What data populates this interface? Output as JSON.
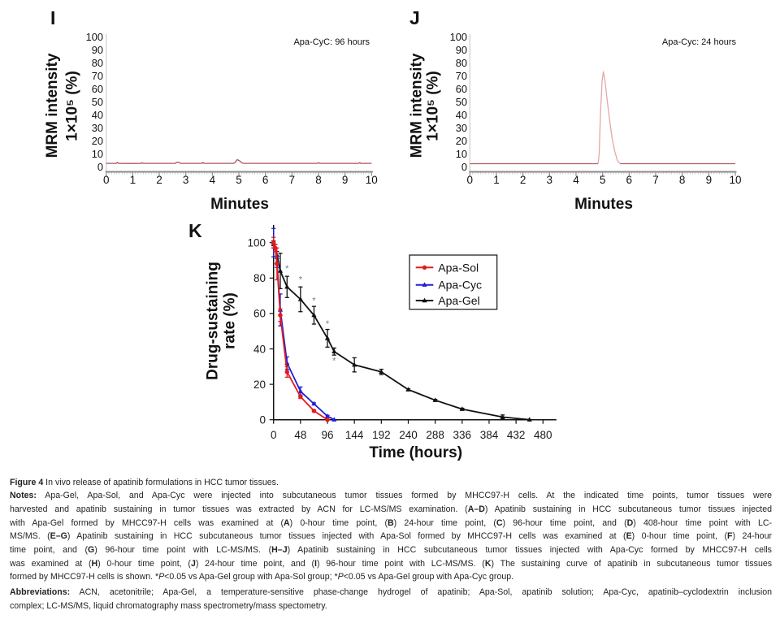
{
  "chart_data": [
    {
      "panel": "I",
      "type": "line",
      "title": "",
      "annotation": "Apa-CyC: 96 hours",
      "xlabel": "Minutes",
      "ylabel": [
        "MRM intensity",
        "1×10⁵ (%)"
      ],
      "xlim": [
        0,
        10
      ],
      "ylim": [
        0,
        100
      ],
      "xticks": [
        0,
        1,
        2,
        3,
        4,
        5,
        6,
        7,
        8,
        9,
        10
      ],
      "yticks": [
        0,
        10,
        20,
        30,
        40,
        50,
        60,
        70,
        80,
        90,
        100
      ],
      "grid": false,
      "legend": null,
      "series": [
        {
          "name": "MRM trace",
          "segments": [
            {
              "color": "#b4505a",
              "points": [
                [
                  0,
                  2.9
                ],
                [
                  0.38,
                  2.9
                ],
                [
                  0.42,
                  3.6
                ],
                [
                  0.46,
                  2.9
                ],
                [
                  1.0,
                  2.8
                ],
                [
                  1.3,
                  2.9
                ],
                [
                  1.35,
                  3.3
                ],
                [
                  1.4,
                  2.9
                ],
                [
                  2.6,
                  2.9
                ],
                [
                  2.66,
                  3.7
                ],
                [
                  2.74,
                  3.6
                ],
                [
                  2.8,
                  2.9
                ],
                [
                  3.6,
                  2.9
                ],
                [
                  3.64,
                  3.6
                ],
                [
                  3.68,
                  2.9
                ],
                [
                  4.8,
                  2.9
                ],
                [
                  4.86,
                  3.6
                ],
                [
                  4.94,
                  5.8
                ],
                [
                  5.02,
                  4.9
                ],
                [
                  5.12,
                  3.2
                ],
                [
                  5.2,
                  2.9
                ],
                [
                  7.96,
                  2.9
                ],
                [
                  8.0,
                  3.5
                ],
                [
                  8.04,
                  2.9
                ],
                [
                  9.52,
                  2.9
                ],
                [
                  9.56,
                  3.5
                ],
                [
                  9.6,
                  2.9
                ],
                [
                  10,
                  2.9
                ]
              ]
            }
          ]
        }
      ]
    },
    {
      "panel": "J",
      "type": "line",
      "title": "",
      "annotation": "Apa-Cyc: 24 hours",
      "xlabel": "Minutes",
      "ylabel": [
        "MRM intensity",
        "1×10⁵ (%)"
      ],
      "xlim": [
        0,
        10
      ],
      "ylim": [
        0,
        100
      ],
      "xticks": [
        0,
        1,
        2,
        3,
        4,
        5,
        6,
        7,
        8,
        9,
        10
      ],
      "yticks": [
        0,
        10,
        20,
        30,
        40,
        50,
        60,
        70,
        80,
        90,
        100
      ],
      "grid": false,
      "legend": null,
      "series": [
        {
          "name": "MRM trace",
          "segments": [
            {
              "color": "#b5585c",
              "points": [
                [
                  0,
                  2.6
                ],
                [
                  4.83,
                  2.6
                ]
              ]
            },
            {
              "color": "#e3a7a9",
              "points": [
                [
                  4.83,
                  2.6
                ],
                [
                  4.87,
                  10
                ],
                [
                  4.92,
                  40
                ],
                [
                  4.98,
                  66
                ],
                [
                  5.03,
                  73.4
                ],
                [
                  5.08,
                  68
                ],
                [
                  5.17,
                  52
                ],
                [
                  5.26,
                  37
                ],
                [
                  5.36,
                  22
                ],
                [
                  5.46,
                  12
                ],
                [
                  5.56,
                  5
                ],
                [
                  5.66,
                  2.6
                ]
              ]
            },
            {
              "color": "#b5585c",
              "points": [
                [
                  5.66,
                  2.6
                ],
                [
                  10,
                  2.6
                ]
              ]
            }
          ]
        }
      ]
    },
    {
      "panel": "K",
      "type": "line",
      "title": "",
      "xlabel": "Time (hours)",
      "ylabel": [
        "Drug-sustaining",
        "rate (%)"
      ],
      "xlim": [
        0,
        504
      ],
      "ylim": [
        0,
        110
      ],
      "xticks": [
        0,
        48,
        96,
        144,
        192,
        240,
        288,
        336,
        384,
        432,
        480
      ],
      "yticks": [
        0,
        20,
        40,
        60,
        80,
        100
      ],
      "grid": false,
      "legend": "top-right",
      "series": [
        {
          "name": "Apa-Sol",
          "color": "#e41a1c",
          "marker": "circle",
          "x": [
            0,
            3,
            6,
            12,
            24,
            48,
            72,
            96
          ],
          "y": [
            100,
            97,
            88,
            59,
            27,
            13,
            5,
            0
          ],
          "error": [
            3,
            2,
            9,
            3.5,
            3,
            1,
            0.5,
            0
          ]
        },
        {
          "name": "Apa-Cyc",
          "color": "#1f1fd6",
          "marker": "triangle",
          "x": [
            0,
            3,
            6,
            12,
            24,
            48,
            72,
            96,
            108
          ],
          "y": [
            100,
            97,
            89,
            62,
            32,
            16,
            9,
            2,
            0
          ],
          "error": [
            8,
            2,
            3,
            9,
            3.5,
            2.5,
            0.5,
            0.5,
            0
          ]
        },
        {
          "name": "Apa-Gel",
          "color": "#111111",
          "marker": "triangle",
          "x": [
            0,
            6,
            12,
            24,
            48,
            72,
            96,
            108,
            144,
            192,
            240,
            288,
            336,
            408,
            456
          ],
          "y": [
            99,
            93,
            84,
            75,
            68,
            59,
            46,
            38.5,
            31,
            27,
            17,
            11,
            6,
            1.5,
            0
          ],
          "error": [
            2,
            2,
            10,
            6,
            7,
            5,
            5,
            2,
            4,
            1.5,
            0.5,
            0.5,
            0.5,
            1.2,
            0
          ]
        }
      ],
      "annotations": {
        "color": "#6a7a94",
        "items": [
          {
            "text": "*",
            "x": 24,
            "y": 86
          },
          {
            "text": "*",
            "x": 48,
            "y": 80
          },
          {
            "text": "*",
            "x": 72,
            "y": 68
          },
          {
            "text": "*",
            "x": 96,
            "y": 55
          },
          {
            "text": "*",
            "x": 108,
            "y": 34
          }
        ]
      }
    }
  ],
  "caption": {
    "paragraphs": [
      {
        "lines": [
          [
            [
              "Figure 4",
              "b"
            ],
            [
              " In vivo release of apatinib formulations in HCC tumor tissues.",
              ""
            ]
          ]
        ]
      },
      {
        "lines": [
          [
            [
              "Notes:",
              "b"
            ],
            [
              " Apa-Gel, Apa-Sol, and Apa-Cyc were injected into subcutaneous tumor tissues formed by MHCC97-H cells. At the indicated time points, tumor tissues were",
              ""
            ]
          ],
          [
            [
              "harvested and apatinib sustaining in tumor tissues was extracted by ACN for LC-MS/MS examination. (",
              ""
            ],
            [
              "A–D",
              "b"
            ],
            [
              ") Apatinib sustaining in HCC subcutaneous tumor tissues injected",
              ""
            ]
          ],
          [
            [
              "with Apa-Gel formed by MHCC97-H cells was examined at (",
              ""
            ],
            [
              "A",
              "b"
            ],
            [
              ") 0-hour time point, (",
              ""
            ],
            [
              "B",
              "b"
            ],
            [
              ") 24-hour time point, (",
              ""
            ],
            [
              "C",
              "b"
            ],
            [
              ") 96-hour time point, and (",
              ""
            ],
            [
              "D",
              "b"
            ],
            [
              ") 408-hour time point with LC-",
              ""
            ]
          ],
          [
            [
              "MS/MS. (",
              ""
            ],
            [
              "E–G",
              "b"
            ],
            [
              ") Apatinib sustaining in HCC subcutaneous tumor tissues injected with Apa-Sol formed by MHCC97-H cells was examined at (",
              ""
            ],
            [
              "E",
              "b"
            ],
            [
              ") 0-hour time point, (",
              ""
            ],
            [
              "F",
              "b"
            ],
            [
              ") 24-hour",
              ""
            ]
          ],
          [
            [
              "time point, and (",
              ""
            ],
            [
              "G",
              "b"
            ],
            [
              ") 96-hour time point with LC-MS/MS. (",
              ""
            ],
            [
              "H–J",
              "b"
            ],
            [
              ") Apatinib sustaining in HCC subcutaneous tumor tissues injected with Apa-Cyc formed by MHCC97-H cells",
              ""
            ]
          ],
          [
            [
              "was examined at (",
              ""
            ],
            [
              "H",
              "b"
            ],
            [
              ") 0-hour time point, (",
              ""
            ],
            [
              "J",
              "b"
            ],
            [
              ") 24-hour time point, and (",
              ""
            ],
            [
              "I",
              "b"
            ],
            [
              ") 96-hour time point with LC-MS/MS. (",
              ""
            ],
            [
              "K",
              "b"
            ],
            [
              ") The sustaining curve of apatinib in subcutaneous tumor tissues",
              ""
            ]
          ],
          [
            [
              "formed by MHCC97-H cells is shown. *",
              ""
            ],
            [
              "P",
              "i"
            ],
            [
              "<0.05 vs Apa-Gel group with Apa-Sol group; *",
              ""
            ],
            [
              "P",
              "i"
            ],
            [
              "<0.05 vs Apa-Gel group with Apa-Cyc group.",
              ""
            ]
          ]
        ]
      },
      {
        "lines": [
          [
            [
              "Abbreviations:",
              "b"
            ],
            [
              " ACN, acetonitrile; Apa-Gel, a temperature-sensitive phase-change hydrogel of apatinib; Apa-Sol, apatinib solution; Apa-Cyc, apatinib–cyclodextrin inclusion",
              ""
            ]
          ],
          [
            [
              "complex; LC-MS/MS, liquid chromatography mass spectrometry/mass spectometry.",
              ""
            ]
          ]
        ]
      }
    ]
  }
}
